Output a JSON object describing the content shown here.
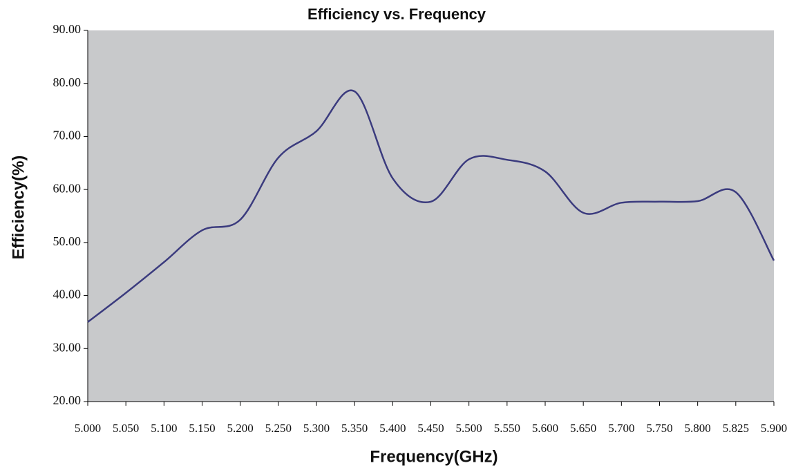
{
  "chart_data": {
    "type": "line",
    "title": "Efficiency vs. Frequency",
    "x_label": "Frequency(GHz)",
    "y_label": "Efficiency(%)",
    "categories": [
      "5.000",
      "5.050",
      "5.100",
      "5.150",
      "5.200",
      "5.250",
      "5.300",
      "5.350",
      "5.400",
      "5.450",
      "5.500",
      "5.550",
      "5.600",
      "5.650",
      "5.700",
      "5.750",
      "5.800",
      "5.825",
      "5.900"
    ],
    "values": [
      35.0,
      40.5,
      46.3,
      52.3,
      54.3,
      66.0,
      71.0,
      78.5,
      62.1,
      57.7,
      65.7,
      65.6,
      63.4,
      55.6,
      57.5,
      57.7,
      57.8,
      59.5,
      46.6
    ],
    "color": "#3b3b7e",
    "plot_background": "#c8c9cb",
    "smooth": true,
    "ylim": [
      20,
      90
    ],
    "yticks": [
      {
        "value": 20,
        "label": "20.00"
      },
      {
        "value": 30,
        "label": "30.00"
      },
      {
        "value": 40,
        "label": "40.00"
      },
      {
        "value": 50,
        "label": "50.00"
      },
      {
        "value": 60,
        "label": "60.00"
      },
      {
        "value": 70,
        "label": "70.00"
      },
      {
        "value": 80,
        "label": "80.00"
      },
      {
        "value": 90,
        "label": "90.00"
      }
    ]
  }
}
